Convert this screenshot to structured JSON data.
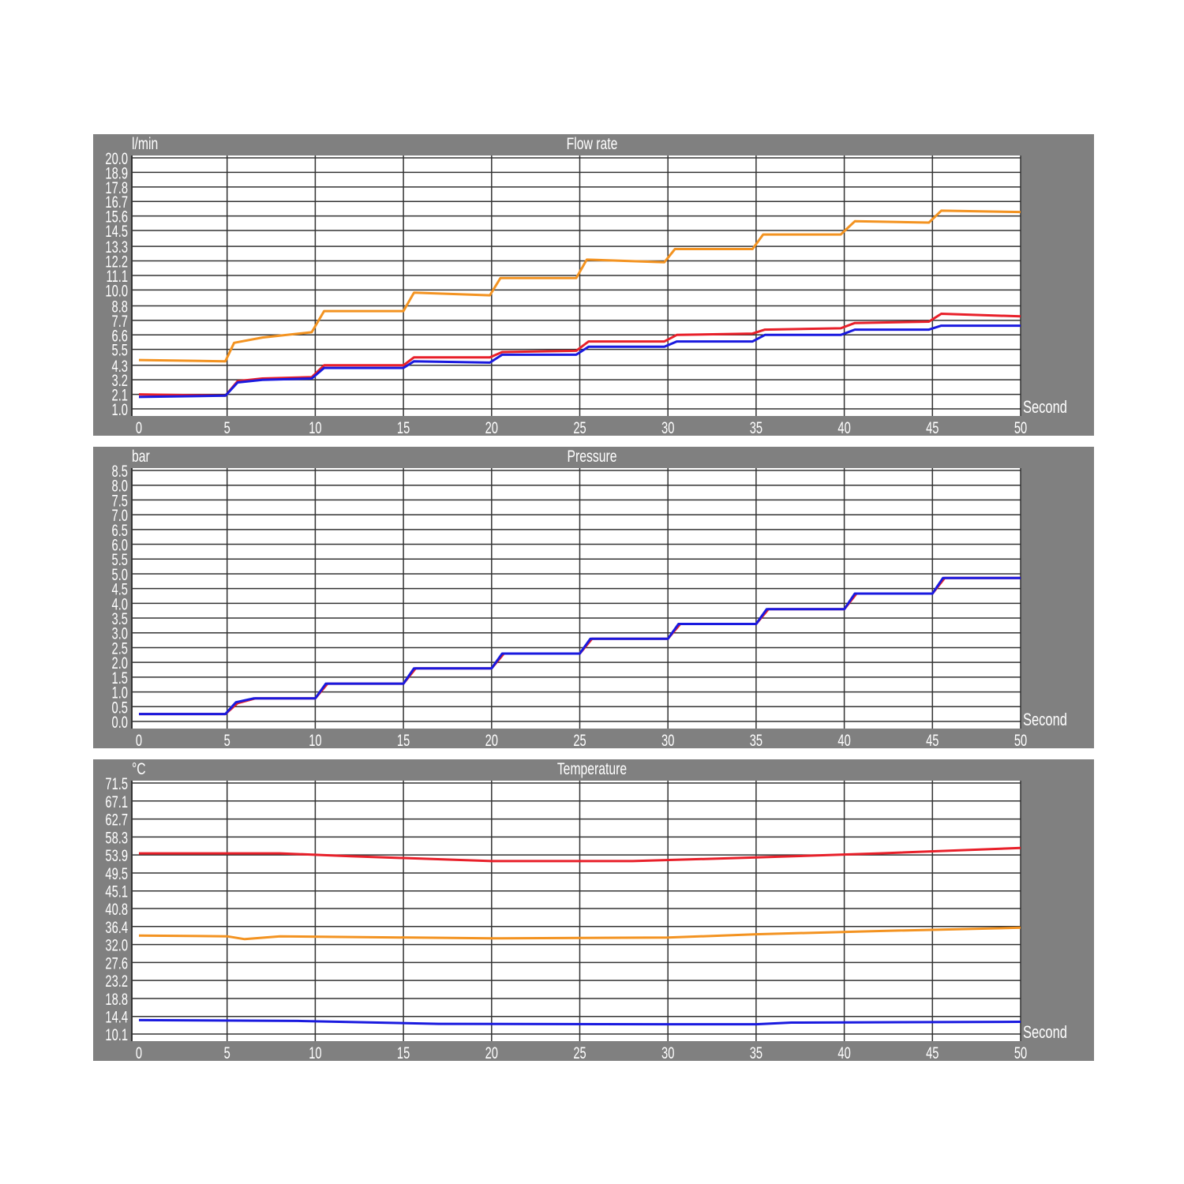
{
  "colors": {
    "panel": "#808080",
    "plot": "#ffffff",
    "grid": "#333333",
    "text": "#ffffff"
  },
  "chart_data": [
    {
      "type": "line",
      "title": "Flow rate",
      "ylabel": "l/min",
      "xlabel": "Second",
      "xlim": [
        0,
        50
      ],
      "xticks": [
        "0",
        "5",
        "10",
        "15",
        "20",
        "25",
        "30",
        "35",
        "40",
        "45",
        "50"
      ],
      "ylim": [
        1.0,
        20.0
      ],
      "yticks": [
        "1.0",
        "2.1",
        "3.2",
        "4.3",
        "5.5",
        "6.6",
        "7.7",
        "8.8",
        "10.0",
        "11.1",
        "12.2",
        "13.3",
        "14.5",
        "15.6",
        "16.7",
        "17.8",
        "18.9",
        "20.0"
      ],
      "grid": true,
      "series": [
        {
          "color": "#f39321",
          "points": [
            [
              0,
              4.7
            ],
            [
              4.9,
              4.6
            ],
            [
              5.4,
              6.0
            ],
            [
              7,
              6.4
            ],
            [
              9.8,
              6.8
            ],
            [
              10.5,
              8.4
            ],
            [
              15,
              8.4
            ],
            [
              15.6,
              9.8
            ],
            [
              19.9,
              9.6
            ],
            [
              20.5,
              10.9
            ],
            [
              24.8,
              10.9
            ],
            [
              25.4,
              12.3
            ],
            [
              29.8,
              12.1
            ],
            [
              30.4,
              13.1
            ],
            [
              34.8,
              13.1
            ],
            [
              35.4,
              14.2
            ],
            [
              39.8,
              14.2
            ],
            [
              40.6,
              15.2
            ],
            [
              44.8,
              15.1
            ],
            [
              45.5,
              16.0
            ],
            [
              50,
              15.9
            ]
          ]
        },
        {
          "color": "#e8202a",
          "points": [
            [
              0,
              2.1
            ],
            [
              4.9,
              2.0
            ],
            [
              5.6,
              3.1
            ],
            [
              7,
              3.3
            ],
            [
              9.8,
              3.4
            ],
            [
              10.5,
              4.3
            ],
            [
              15,
              4.3
            ],
            [
              15.6,
              4.9
            ],
            [
              19.9,
              4.9
            ],
            [
              20.6,
              5.3
            ],
            [
              24.8,
              5.4
            ],
            [
              25.5,
              6.1
            ],
            [
              29.8,
              6.1
            ],
            [
              30.5,
              6.6
            ],
            [
              34.8,
              6.7
            ],
            [
              35.5,
              7.0
            ],
            [
              39.8,
              7.1
            ],
            [
              40.6,
              7.5
            ],
            [
              44.8,
              7.6
            ],
            [
              45.5,
              8.2
            ],
            [
              50,
              8.0
            ]
          ]
        },
        {
          "color": "#1a1adf",
          "points": [
            [
              0,
              1.9
            ],
            [
              4.9,
              2.0
            ],
            [
              5.6,
              3.0
            ],
            [
              7,
              3.2
            ],
            [
              9.8,
              3.3
            ],
            [
              10.5,
              4.1
            ],
            [
              15,
              4.1
            ],
            [
              15.6,
              4.6
            ],
            [
              19.9,
              4.5
            ],
            [
              20.6,
              5.1
            ],
            [
              24.8,
              5.1
            ],
            [
              25.5,
              5.7
            ],
            [
              29.8,
              5.7
            ],
            [
              30.5,
              6.1
            ],
            [
              34.8,
              6.1
            ],
            [
              35.5,
              6.6
            ],
            [
              39.8,
              6.6
            ],
            [
              40.6,
              7.0
            ],
            [
              44.8,
              7.0
            ],
            [
              45.5,
              7.3
            ],
            [
              50,
              7.3
            ]
          ]
        }
      ]
    },
    {
      "type": "line",
      "title": "Pressure",
      "ylabel": "bar",
      "xlabel": "Second",
      "xlim": [
        0,
        50
      ],
      "xticks": [
        "0",
        "5",
        "10",
        "15",
        "20",
        "25",
        "30",
        "35",
        "40",
        "45",
        "50"
      ],
      "ylim": [
        0.0,
        8.5
      ],
      "yticks": [
        "0.0",
        "0.5",
        "1.0",
        "1.5",
        "2.0",
        "2.5",
        "3.0",
        "3.5",
        "4.0",
        "4.5",
        "5.0",
        "5.5",
        "6.0",
        "6.5",
        "7.0",
        "7.5",
        "8.0",
        "8.5"
      ],
      "grid": true,
      "series": [
        {
          "color": "#e8202a",
          "points": [
            [
              0,
              0.25
            ],
            [
              4.9,
              0.25
            ],
            [
              5.6,
              0.62
            ],
            [
              6.6,
              0.78
            ],
            [
              10,
              0.78
            ],
            [
              10.7,
              1.28
            ],
            [
              15,
              1.28
            ],
            [
              15.7,
              1.8
            ],
            [
              20,
              1.8
            ],
            [
              20.7,
              2.3
            ],
            [
              25,
              2.3
            ],
            [
              25.7,
              2.8
            ],
            [
              30,
              2.8
            ],
            [
              30.7,
              3.3
            ],
            [
              35,
              3.3
            ],
            [
              35.7,
              3.8
            ],
            [
              40,
              3.8
            ],
            [
              40.7,
              4.33
            ],
            [
              45,
              4.33
            ],
            [
              45.7,
              4.86
            ],
            [
              50,
              4.86
            ]
          ]
        },
        {
          "color": "#1a1adf",
          "points": [
            [
              0,
              0.25
            ],
            [
              4.9,
              0.25
            ],
            [
              5.5,
              0.65
            ],
            [
              6.5,
              0.78
            ],
            [
              10,
              0.78
            ],
            [
              10.6,
              1.28
            ],
            [
              15,
              1.28
            ],
            [
              15.6,
              1.8
            ],
            [
              20,
              1.8
            ],
            [
              20.6,
              2.3
            ],
            [
              25,
              2.3
            ],
            [
              25.6,
              2.8
            ],
            [
              30,
              2.8
            ],
            [
              30.6,
              3.3
            ],
            [
              35,
              3.3
            ],
            [
              35.6,
              3.8
            ],
            [
              40,
              3.8
            ],
            [
              40.6,
              4.33
            ],
            [
              45,
              4.33
            ],
            [
              45.6,
              4.86
            ],
            [
              50,
              4.86
            ]
          ]
        }
      ]
    },
    {
      "type": "line",
      "title": "Temperature",
      "ylabel": "°C",
      "xlabel": "Second",
      "xlim": [
        0,
        50
      ],
      "xticks": [
        "0",
        "5",
        "10",
        "15",
        "20",
        "25",
        "30",
        "35",
        "40",
        "45",
        "50"
      ],
      "ylim": [
        10.1,
        71.5
      ],
      "yticks": [
        "10.1",
        "14.4",
        "18.8",
        "23.2",
        "27.6",
        "32.0",
        "36.4",
        "40.8",
        "45.1",
        "49.5",
        "53.9",
        "58.3",
        "62.7",
        "67.1",
        "71.5"
      ],
      "grid": true,
      "series": [
        {
          "color": "#e8202a",
          "points": [
            [
              0,
              54.3
            ],
            [
              8,
              54.3
            ],
            [
              12,
              53.6
            ],
            [
              20,
              52.4
            ],
            [
              28,
              52.4
            ],
            [
              35,
              53.3
            ],
            [
              42,
              54.3
            ],
            [
              50,
              55.6
            ]
          ]
        },
        {
          "color": "#f39321",
          "points": [
            [
              0,
              34.2
            ],
            [
              5,
              34.0
            ],
            [
              6,
              33.3
            ],
            [
              8,
              34.0
            ],
            [
              20,
              33.5
            ],
            [
              30,
              33.7
            ],
            [
              35,
              34.5
            ],
            [
              42,
              35.3
            ],
            [
              50,
              36.1
            ]
          ]
        },
        {
          "color": "#1a1adf",
          "points": [
            [
              0,
              13.5
            ],
            [
              9,
              13.3
            ],
            [
              17,
              12.6
            ],
            [
              30,
              12.5
            ],
            [
              35,
              12.5
            ],
            [
              37,
              12.9
            ],
            [
              50,
              13.1
            ]
          ]
        }
      ]
    }
  ]
}
